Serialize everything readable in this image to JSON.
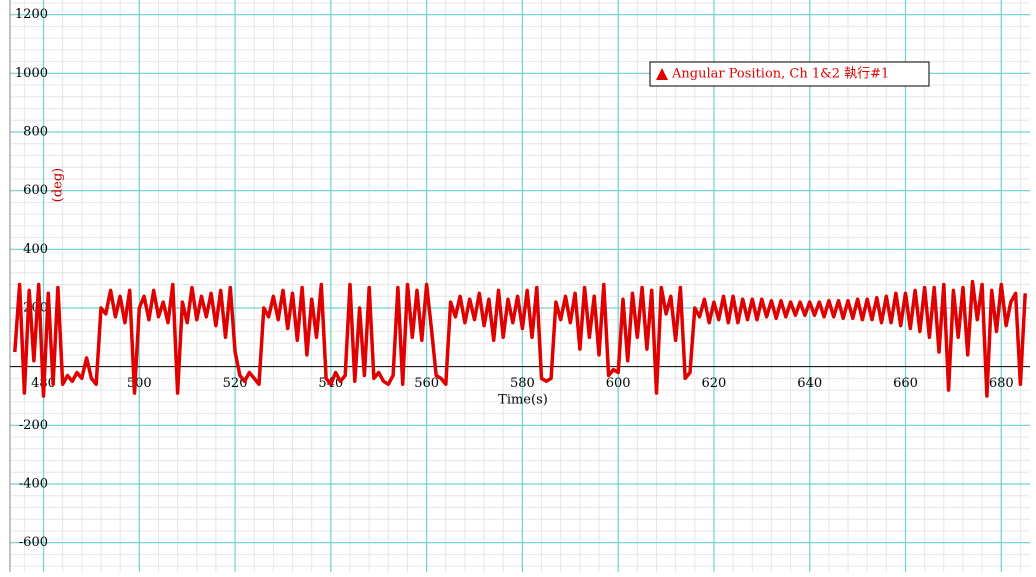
{
  "chart_data": {
    "type": "line",
    "x_label": "Time(s)",
    "y_label": "(deg)",
    "xlim": [
      473,
      686
    ],
    "ylim": [
      -700,
      1250
    ],
    "xticks": [
      480,
      500,
      520,
      540,
      560,
      580,
      600,
      620,
      640,
      660,
      680
    ],
    "yticks": [
      -600,
      -400,
      -200,
      200,
      400,
      600,
      800,
      1000,
      1200
    ],
    "grid": true,
    "legend": "upper right",
    "series": [
      {
        "name": "Angular Position, Ch 1&2 執行#1",
        "color": "#e00000",
        "x": [
          474,
          475,
          476,
          477,
          478,
          479,
          480,
          481,
          482,
          483,
          484,
          485,
          486,
          487,
          488,
          489,
          490,
          491,
          492,
          493,
          494,
          495,
          496,
          497,
          498,
          499,
          500,
          501,
          502,
          503,
          504,
          505,
          506,
          507,
          508,
          509,
          510,
          511,
          512,
          513,
          514,
          515,
          516,
          517,
          518,
          519,
          520,
          521,
          522,
          523,
          524,
          525,
          526,
          527,
          528,
          529,
          530,
          531,
          532,
          533,
          534,
          535,
          536,
          537,
          538,
          539,
          540,
          541,
          542,
          543,
          544,
          545,
          546,
          547,
          548,
          549,
          550,
          551,
          552,
          553,
          554,
          555,
          556,
          557,
          558,
          559,
          560,
          561,
          562,
          563,
          564,
          565,
          566,
          567,
          568,
          569,
          570,
          571,
          572,
          573,
          574,
          575,
          576,
          577,
          578,
          579,
          580,
          581,
          582,
          583,
          584,
          585,
          586,
          587,
          588,
          589,
          590,
          591,
          592,
          593,
          594,
          595,
          596,
          597,
          598,
          599,
          600,
          601,
          602,
          603,
          604,
          605,
          606,
          607,
          608,
          609,
          610,
          611,
          612,
          613,
          614,
          615,
          616,
          617,
          618,
          619,
          620,
          621,
          622,
          623,
          624,
          625,
          626,
          627,
          628,
          629,
          630,
          631,
          632,
          633,
          634,
          635,
          636,
          637,
          638,
          639,
          640,
          641,
          642,
          643,
          644,
          645,
          646,
          647,
          648,
          649,
          650,
          651,
          652,
          653,
          654,
          655,
          656,
          657,
          658,
          659,
          660,
          661,
          662,
          663,
          664,
          665,
          666,
          667,
          668,
          669,
          670,
          671,
          672,
          673,
          674,
          675,
          676,
          677,
          678,
          679,
          680,
          681,
          682,
          683,
          684,
          685
        ],
        "values": [
          50,
          280,
          -90,
          260,
          20,
          280,
          -100,
          250,
          -60,
          270,
          -60,
          -30,
          -50,
          -20,
          -40,
          30,
          -40,
          -60,
          200,
          180,
          260,
          170,
          240,
          150,
          260,
          -90,
          200,
          240,
          160,
          260,
          170,
          220,
          150,
          280,
          -90,
          220,
          150,
          270,
          160,
          240,
          170,
          250,
          140,
          260,
          100,
          270,
          50,
          -30,
          -50,
          -20,
          -40,
          -60,
          200,
          170,
          240,
          160,
          260,
          130,
          250,
          90,
          270,
          40,
          230,
          100,
          280,
          -40,
          -60,
          -20,
          -50,
          -30,
          280,
          -50,
          200,
          -30,
          270,
          -40,
          -20,
          -50,
          -60,
          -30,
          270,
          -60,
          280,
          100,
          260,
          90,
          280,
          130,
          -30,
          -40,
          -60,
          220,
          170,
          240,
          150,
          230,
          160,
          250,
          140,
          230,
          90,
          260,
          100,
          230,
          150,
          240,
          130,
          260,
          100,
          270,
          -40,
          -50,
          -40,
          220,
          160,
          240,
          150,
          250,
          60,
          270,
          100,
          240,
          40,
          280,
          -30,
          -10,
          -20,
          230,
          20,
          250,
          100,
          270,
          60,
          260,
          -90,
          270,
          180,
          240,
          90,
          270,
          -40,
          -20,
          200,
          170,
          230,
          150,
          220,
          160,
          240,
          150,
          240,
          150,
          230,
          160,
          230,
          160,
          230,
          170,
          225,
          165,
          225,
          170,
          220,
          175,
          220,
          175,
          220,
          175,
          220,
          170,
          225,
          170,
          225,
          165,
          225,
          165,
          230,
          160,
          230,
          160,
          235,
          150,
          240,
          150,
          250,
          140,
          250,
          130,
          260,
          120,
          270,
          100,
          270,
          50,
          280,
          -80,
          260,
          100,
          270,
          40,
          290,
          160,
          280,
          -100,
          260,
          120,
          280,
          140,
          220,
          250,
          -60,
          250
        ]
      }
    ]
  }
}
